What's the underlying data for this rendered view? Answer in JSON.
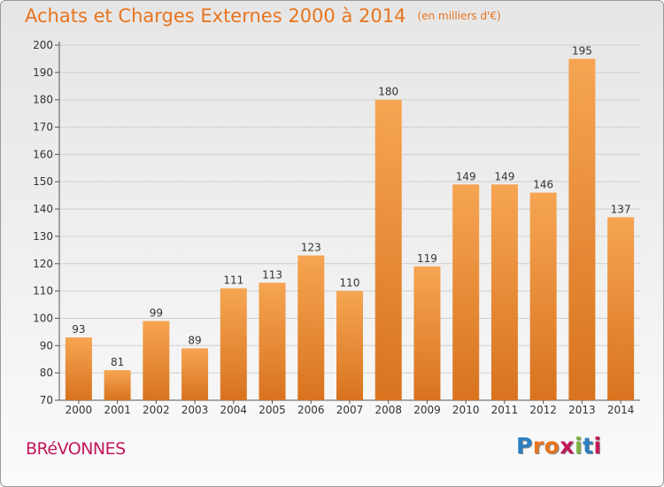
{
  "title": "Achats et Charges Externes 2000 à 2014",
  "unit_label": "(en milliers d'€)",
  "place_name": "BRéVONNES",
  "logo": {
    "text": "Proxiti",
    "letter_colors": [
      "#2e7fc1",
      "#e8741e",
      "#e8741e",
      "#c2185b",
      "#7cb342",
      "#2e7fc1",
      "#c2185b"
    ]
  },
  "colors": {
    "bar_top": "#f6a552",
    "bar_bottom": "#d8731f",
    "title": "#e8741e",
    "place": "#c2185b"
  },
  "chart_data": {
    "type": "bar",
    "title": "Achats et Charges Externes 2000 à 2014",
    "subtitle": "(en milliers d'€)",
    "categories": [
      "2000",
      "2001",
      "2002",
      "2003",
      "2004",
      "2005",
      "2006",
      "2007",
      "2008",
      "2009",
      "2010",
      "2011",
      "2012",
      "2013",
      "2014"
    ],
    "values": [
      93,
      81,
      99,
      89,
      111,
      113,
      123,
      110,
      180,
      119,
      149,
      149,
      146,
      195,
      137
    ],
    "ylim": [
      70,
      200
    ],
    "yticks": [
      70,
      80,
      90,
      100,
      110,
      120,
      130,
      140,
      150,
      160,
      170,
      180,
      190,
      200
    ],
    "grid": true,
    "data_labels": true
  }
}
